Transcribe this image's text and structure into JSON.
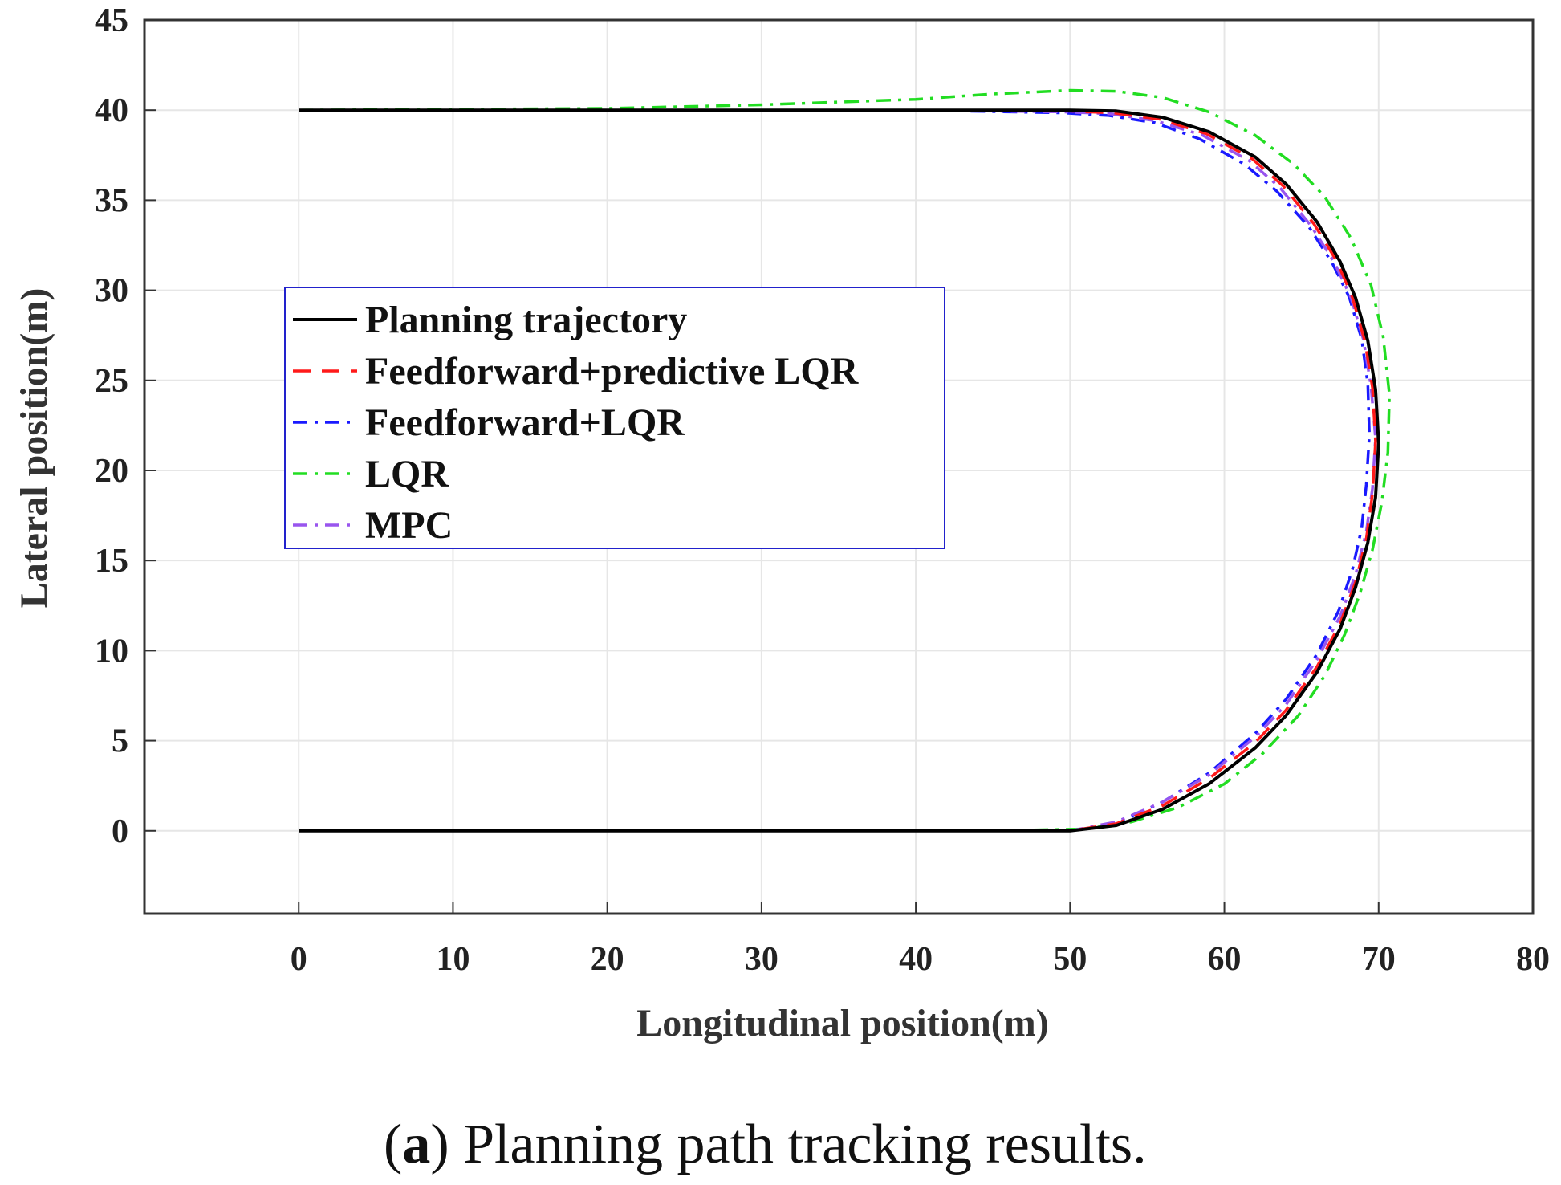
{
  "chart_data": {
    "type": "line",
    "xlabel": "Longitudinal position(m)",
    "ylabel": "Lateral position(m)",
    "xlim": [
      -10,
      80
    ],
    "ylim": [
      -4.6,
      45
    ],
    "xticks": [
      0,
      10,
      20,
      30,
      40,
      50,
      60,
      70,
      80
    ],
    "yticks": [
      0,
      5,
      10,
      15,
      20,
      25,
      30,
      35,
      40,
      45
    ],
    "grid": true,
    "legend_placement": "center-left",
    "series": [
      {
        "name": "Planning trajectory",
        "color": "#000000",
        "dash": "solid",
        "x": [
          0,
          10,
          20,
          30,
          40,
          50,
          53,
          56,
          59,
          62,
          64,
          66,
          67.5,
          68.5,
          69.3,
          69.8,
          70,
          69.8,
          69.3,
          68.5,
          67.5,
          66,
          64,
          62,
          59,
          56,
          53,
          50,
          40,
          30,
          20,
          10,
          0
        ],
        "y": [
          0,
          0,
          0,
          0,
          0,
          0,
          0.3,
          1.2,
          2.6,
          4.6,
          6.4,
          8.8,
          11.2,
          13.5,
          16.0,
          18.5,
          21.5,
          24.5,
          27.2,
          29.6,
          31.6,
          33.8,
          35.9,
          37.4,
          38.8,
          39.6,
          39.95,
          40,
          40,
          40,
          40,
          40,
          40
        ]
      },
      {
        "name": "Feedforward+predictive LQR",
        "color": "#ff1a1a",
        "dash": "dashed",
        "x": [
          0,
          10,
          20,
          30,
          40,
          50,
          53,
          56,
          59,
          62,
          64,
          66,
          67.5,
          68.5,
          69.2,
          69.6,
          69.8,
          69.6,
          69.1,
          68.3,
          67.3,
          65.8,
          63.8,
          61.8,
          58.8,
          55.8,
          52.8,
          49.8,
          40,
          30,
          20,
          10,
          0
        ],
        "y": [
          0,
          0,
          0,
          0,
          0,
          0,
          0.4,
          1.4,
          2.9,
          4.9,
          6.7,
          9.1,
          11.5,
          13.8,
          16.2,
          18.7,
          21.6,
          24.6,
          27.2,
          29.6,
          31.6,
          33.7,
          35.8,
          37.3,
          38.7,
          39.5,
          39.85,
          39.95,
          40,
          40,
          40,
          40,
          40
        ]
      },
      {
        "name": "Feedforward+LQR",
        "color": "#1a1aff",
        "dash": "dashdot",
        "x": [
          0,
          10,
          20,
          30,
          40,
          50,
          53,
          56,
          59,
          62,
          64,
          66,
          67.4,
          68.3,
          68.9,
          69.2,
          69.4,
          69.3,
          68.9,
          68.1,
          67.0,
          65.5,
          63.4,
          61.3,
          58.4,
          55.5,
          52.5,
          49.5,
          40,
          30,
          20,
          10,
          0
        ],
        "y": [
          0,
          0,
          0,
          0,
          0,
          0,
          0.4,
          1.6,
          3.2,
          5.4,
          7.3,
          9.8,
          12.2,
          14.5,
          16.8,
          19.2,
          22.0,
          24.8,
          27.3,
          29.6,
          31.5,
          33.5,
          35.5,
          37.0,
          38.4,
          39.3,
          39.7,
          39.85,
          40,
          40,
          40,
          40,
          40
        ]
      },
      {
        "name": "LQR",
        "color": "#22dd22",
        "dash": "dashdot",
        "x": [
          0,
          10,
          20,
          30,
          40,
          45,
          50,
          53,
          56,
          59,
          62,
          64.5,
          66.5,
          68.2,
          69.5,
          70.3,
          70.7,
          70.6,
          70.2,
          69.6,
          68.8,
          67.8,
          66.5,
          64.8,
          62.5,
          60,
          57,
          54,
          51,
          45,
          40,
          30,
          20,
          10,
          0
        ],
        "y": [
          40,
          40.05,
          40.1,
          40.3,
          40.6,
          40.9,
          41.1,
          41.05,
          40.7,
          39.9,
          38.6,
          37.0,
          35.2,
          32.9,
          30.3,
          27.4,
          24.2,
          21.0,
          18.2,
          15.6,
          13.2,
          10.9,
          8.6,
          6.4,
          4.3,
          2.6,
          1.3,
          0.5,
          0.1,
          0,
          0,
          0,
          0,
          0,
          0
        ]
      },
      {
        "name": "MPC",
        "color": "#9955ee",
        "dash": "dashdot",
        "x": [
          0,
          10,
          20,
          30,
          40,
          50,
          53,
          56,
          59,
          62,
          64,
          66,
          67.5,
          68.5,
          69.2,
          69.6,
          69.8,
          69.5,
          69.0,
          68.2,
          67.1,
          65.6,
          63.6,
          61.6,
          58.6,
          55.6,
          52.6,
          49.6,
          40,
          30,
          20,
          10,
          0
        ],
        "y": [
          0,
          0,
          0,
          0,
          0,
          0,
          0.5,
          1.6,
          3.1,
          5.2,
          7.0,
          9.5,
          11.9,
          14.2,
          16.6,
          19.0,
          21.8,
          24.7,
          27.3,
          29.6,
          31.6,
          33.6,
          35.7,
          37.2,
          38.6,
          39.4,
          39.8,
          39.9,
          40,
          40,
          40,
          40,
          40
        ]
      }
    ]
  },
  "caption": {
    "prefix_open": "(",
    "letter": "a",
    "text": ") Planning path tracking results."
  }
}
